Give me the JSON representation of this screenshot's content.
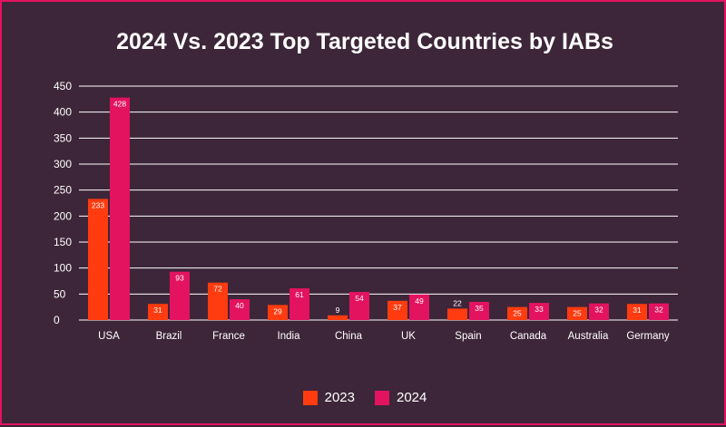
{
  "chart_data": {
    "type": "bar",
    "title": "2024 Vs. 2023 Top Targeted Countries by IABs",
    "categories": [
      "USA",
      "Brazil",
      "France",
      "India",
      "China",
      "UK",
      "Spain",
      "Canada",
      "Australia",
      "Germany"
    ],
    "series": [
      {
        "name": "2023",
        "color": "#ff3b0f",
        "values": [
          233,
          31,
          72,
          29,
          9,
          37,
          22,
          25,
          25,
          31
        ]
      },
      {
        "name": "2024",
        "color": "#e3135f",
        "values": [
          428,
          93,
          40,
          61,
          54,
          49,
          35,
          33,
          32,
          32
        ]
      }
    ],
    "ylim": [
      0,
      450
    ],
    "yticks": [
      "0",
      "50",
      "100",
      "150",
      "200",
      "250",
      "300",
      "350",
      "400",
      "450"
    ],
    "grid": true,
    "legend_position": "bottom",
    "colors": {
      "background": "#3d2639",
      "border": "#e3135f",
      "text": "#ffffff",
      "grid": "#ffffff"
    }
  }
}
